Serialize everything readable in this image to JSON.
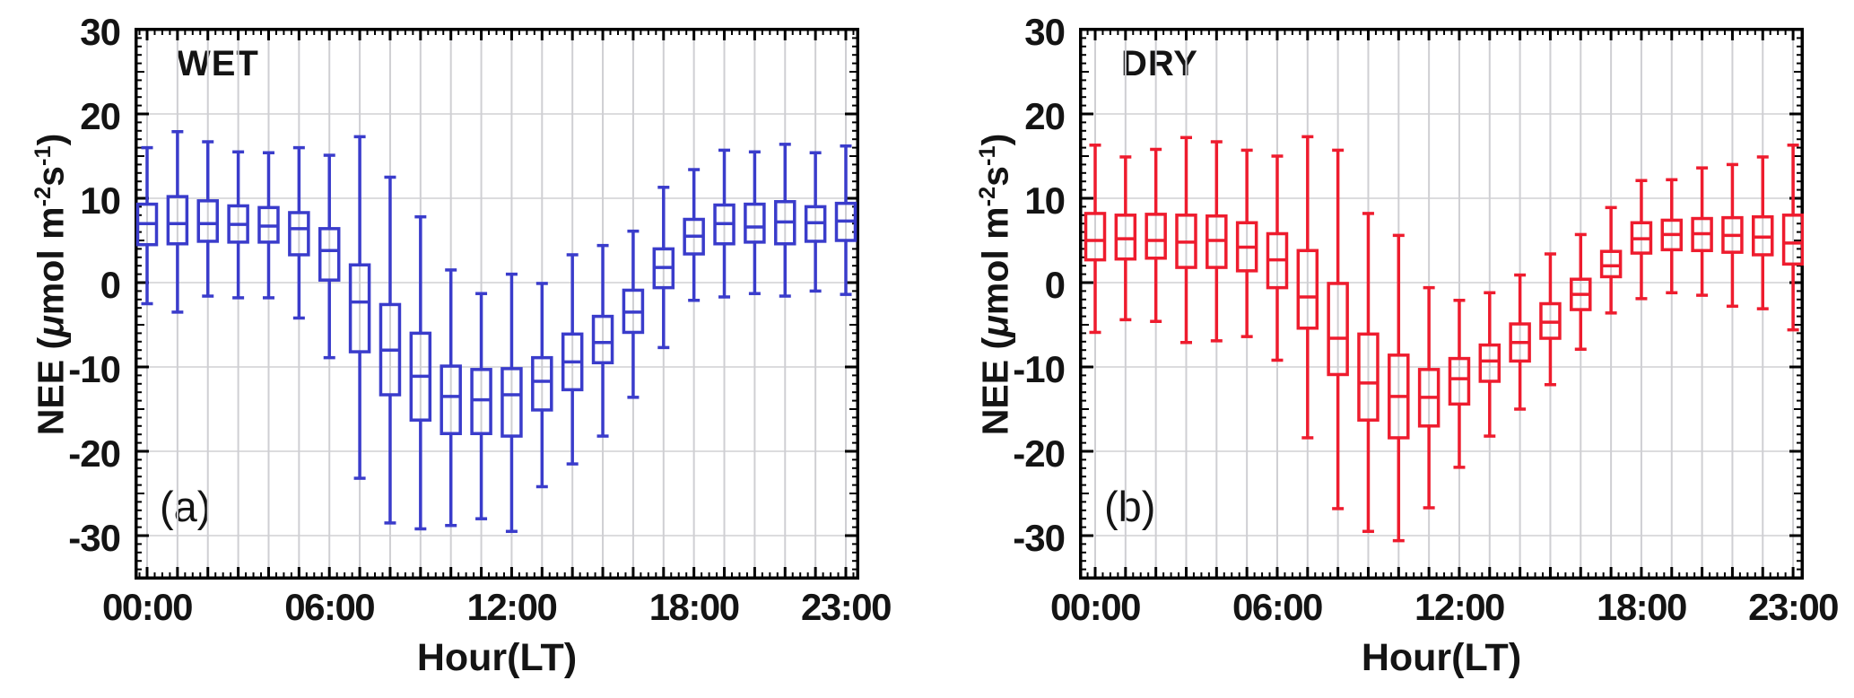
{
  "figure": {
    "background": "#ffffff",
    "ylabel_text": "NEE (μmol m⁻²s⁻¹)"
  },
  "chart_data": [
    {
      "type": "box",
      "panel_label": "(a)",
      "condition_label": "WET",
      "color": "#3a3ccb",
      "xlabel": "Hour(LT)",
      "ylabel_parts": {
        "pre": "NEE (",
        "mu": "μ",
        "mid": "mol m",
        "sup1": "-2",
        "mid2": "s",
        "sup2": "-1",
        "post": ")"
      },
      "x_ticks": [
        {
          "hour": 0,
          "label": "00:00"
        },
        {
          "hour": 6,
          "label": "06:00"
        },
        {
          "hour": 12,
          "label": "12:00"
        },
        {
          "hour": 18,
          "label": "18:00"
        },
        {
          "hour": 23,
          "label": "23:00"
        }
      ],
      "y_ticks": [
        {
          "value": 30,
          "label": "30"
        },
        {
          "value": 20,
          "label": "20"
        },
        {
          "value": 10,
          "label": "10"
        },
        {
          "value": 0,
          "label": "0"
        },
        {
          "value": -10,
          "label": "-10"
        },
        {
          "value": -20,
          "label": "-20"
        },
        {
          "value": -30,
          "label": "-30"
        }
      ],
      "y_gridlines": [
        20,
        10,
        0,
        -10,
        -20,
        -30
      ],
      "ylim": [
        -35,
        30
      ],
      "grid": true,
      "boxes": [
        {
          "hour": 0,
          "lo": -2.5,
          "q1": 4.5,
          "med": 7.0,
          "q3": 9.3,
          "hi": 16.0
        },
        {
          "hour": 1,
          "lo": -3.5,
          "q1": 4.6,
          "med": 7.0,
          "q3": 10.2,
          "hi": 17.9
        },
        {
          "hour": 2,
          "lo": -1.6,
          "q1": 4.9,
          "med": 7.0,
          "q3": 9.7,
          "hi": 16.7
        },
        {
          "hour": 3,
          "lo": -1.8,
          "q1": 4.8,
          "med": 6.9,
          "q3": 9.1,
          "hi": 15.5
        },
        {
          "hour": 4,
          "lo": -1.8,
          "q1": 4.8,
          "med": 6.7,
          "q3": 8.9,
          "hi": 15.4
        },
        {
          "hour": 5,
          "lo": -4.2,
          "q1": 3.3,
          "med": 6.4,
          "q3": 8.3,
          "hi": 16.0
        },
        {
          "hour": 6,
          "lo": -8.9,
          "q1": 0.3,
          "med": 3.8,
          "q3": 6.4,
          "hi": 15.1
        },
        {
          "hour": 7,
          "lo": -23.2,
          "q1": -8.2,
          "med": -2.3,
          "q3": 2.1,
          "hi": 17.3
        },
        {
          "hour": 8,
          "lo": -28.5,
          "q1": -13.3,
          "med": -8.0,
          "q3": -2.6,
          "hi": 12.5
        },
        {
          "hour": 9,
          "lo": -29.2,
          "q1": -16.3,
          "med": -11.1,
          "q3": -6.0,
          "hi": 7.8
        },
        {
          "hour": 10,
          "lo": -28.8,
          "q1": -17.9,
          "med": -13.5,
          "q3": -9.9,
          "hi": 1.5
        },
        {
          "hour": 11,
          "lo": -28.0,
          "q1": -17.9,
          "med": -13.9,
          "q3": -10.3,
          "hi": -1.3
        },
        {
          "hour": 12,
          "lo": -29.5,
          "q1": -18.2,
          "med": -13.3,
          "q3": -10.2,
          "hi": 1.0
        },
        {
          "hour": 13,
          "lo": -24.2,
          "q1": -15.1,
          "med": -11.7,
          "q3": -8.9,
          "hi": -0.1
        },
        {
          "hour": 14,
          "lo": -21.5,
          "q1": -12.7,
          "med": -9.4,
          "q3": -6.1,
          "hi": 3.3
        },
        {
          "hour": 15,
          "lo": -18.2,
          "q1": -9.5,
          "med": -7.1,
          "q3": -4.0,
          "hi": 4.4
        },
        {
          "hour": 16,
          "lo": -13.6,
          "q1": -5.9,
          "med": -3.5,
          "q3": -0.9,
          "hi": 6.1
        },
        {
          "hour": 17,
          "lo": -7.7,
          "q1": -0.6,
          "med": 1.8,
          "q3": 4.0,
          "hi": 11.3
        },
        {
          "hour": 18,
          "lo": -2.1,
          "q1": 3.4,
          "med": 5.5,
          "q3": 7.5,
          "hi": 13.4
        },
        {
          "hour": 19,
          "lo": -1.7,
          "q1": 4.6,
          "med": 7.0,
          "q3": 9.2,
          "hi": 15.7
        },
        {
          "hour": 20,
          "lo": -1.3,
          "q1": 4.8,
          "med": 6.6,
          "q3": 9.3,
          "hi": 15.5
        },
        {
          "hour": 21,
          "lo": -1.6,
          "q1": 4.6,
          "med": 7.2,
          "q3": 9.6,
          "hi": 16.4
        },
        {
          "hour": 22,
          "lo": -1.0,
          "q1": 4.9,
          "med": 7.1,
          "q3": 9.0,
          "hi": 15.4
        },
        {
          "hour": 23,
          "lo": -1.4,
          "q1": 5.0,
          "med": 7.3,
          "q3": 9.4,
          "hi": 16.2
        }
      ]
    },
    {
      "type": "box",
      "panel_label": "(b)",
      "condition_label": "DRY",
      "color": "#ee1c2e",
      "xlabel": "Hour(LT)",
      "ylabel_parts": {
        "pre": "NEE (",
        "mu": "μ",
        "mid": "mol m",
        "sup1": "-2",
        "mid2": "s",
        "sup2": "-1",
        "post": ")"
      },
      "x_ticks": [
        {
          "hour": 0,
          "label": "00:00"
        },
        {
          "hour": 6,
          "label": "06:00"
        },
        {
          "hour": 12,
          "label": "12:00"
        },
        {
          "hour": 18,
          "label": "18:00"
        },
        {
          "hour": 23,
          "label": "23:00"
        }
      ],
      "y_ticks": [
        {
          "value": 30,
          "label": "30"
        },
        {
          "value": 20,
          "label": "20"
        },
        {
          "value": 10,
          "label": "10"
        },
        {
          "value": 0,
          "label": "0"
        },
        {
          "value": -10,
          "label": "-10"
        },
        {
          "value": -20,
          "label": "-20"
        },
        {
          "value": -30,
          "label": "-30"
        }
      ],
      "y_gridlines": [
        20,
        10,
        0,
        -10,
        -20,
        -30
      ],
      "ylim": [
        -35,
        30
      ],
      "grid": true,
      "boxes": [
        {
          "hour": 0,
          "lo": -5.9,
          "q1": 2.7,
          "med": 5.0,
          "q3": 8.2,
          "hi": 16.3
        },
        {
          "hour": 1,
          "lo": -4.4,
          "q1": 2.8,
          "med": 5.2,
          "q3": 8.0,
          "hi": 14.9
        },
        {
          "hour": 2,
          "lo": -4.6,
          "q1": 2.9,
          "med": 5.0,
          "q3": 8.1,
          "hi": 15.8
        },
        {
          "hour": 3,
          "lo": -7.1,
          "q1": 1.8,
          "med": 4.8,
          "q3": 8.0,
          "hi": 17.2
        },
        {
          "hour": 4,
          "lo": -6.9,
          "q1": 1.8,
          "med": 5.0,
          "q3": 7.9,
          "hi": 16.7
        },
        {
          "hour": 5,
          "lo": -6.4,
          "q1": 1.4,
          "med": 4.2,
          "q3": 7.1,
          "hi": 15.7
        },
        {
          "hour": 6,
          "lo": -9.2,
          "q1": -0.6,
          "med": 2.7,
          "q3": 5.8,
          "hi": 15.0
        },
        {
          "hour": 7,
          "lo": -18.4,
          "q1": -5.4,
          "med": -1.7,
          "q3": 3.8,
          "hi": 17.3
        },
        {
          "hour": 8,
          "lo": -26.8,
          "q1": -10.9,
          "med": -6.6,
          "q3": -0.1,
          "hi": 15.7
        },
        {
          "hour": 9,
          "lo": -29.5,
          "q1": -16.3,
          "med": -11.9,
          "q3": -6.1,
          "hi": 8.2
        },
        {
          "hour": 10,
          "lo": -30.6,
          "q1": -18.4,
          "med": -13.5,
          "q3": -8.6,
          "hi": 5.6
        },
        {
          "hour": 11,
          "lo": -26.7,
          "q1": -17.0,
          "med": -13.6,
          "q3": -10.3,
          "hi": -0.6
        },
        {
          "hour": 12,
          "lo": -21.9,
          "q1": -14.4,
          "med": -11.4,
          "q3": -9.0,
          "hi": -2.1
        },
        {
          "hour": 13,
          "lo": -18.2,
          "q1": -11.7,
          "med": -9.3,
          "q3": -7.4,
          "hi": -1.2
        },
        {
          "hour": 14,
          "lo": -15.0,
          "q1": -9.3,
          "med": -7.1,
          "q3": -4.9,
          "hi": 0.9
        },
        {
          "hour": 15,
          "lo": -12.1,
          "q1": -6.6,
          "med": -4.7,
          "q3": -2.5,
          "hi": 3.4
        },
        {
          "hour": 16,
          "lo": -7.9,
          "q1": -3.2,
          "med": -1.4,
          "q3": 0.4,
          "hi": 5.7
        },
        {
          "hour": 17,
          "lo": -3.6,
          "q1": 0.7,
          "med": 2.0,
          "q3": 3.7,
          "hi": 8.9
        },
        {
          "hour": 18,
          "lo": -1.9,
          "q1": 3.5,
          "med": 5.2,
          "q3": 7.1,
          "hi": 12.1
        },
        {
          "hour": 19,
          "lo": -1.2,
          "q1": 3.9,
          "med": 5.7,
          "q3": 7.4,
          "hi": 12.2
        },
        {
          "hour": 20,
          "lo": -1.5,
          "q1": 3.8,
          "med": 5.8,
          "q3": 7.6,
          "hi": 13.6
        },
        {
          "hour": 21,
          "lo": -2.8,
          "q1": 3.6,
          "med": 5.6,
          "q3": 7.7,
          "hi": 14.0
        },
        {
          "hour": 22,
          "lo": -3.1,
          "q1": 3.3,
          "med": 5.4,
          "q3": 7.8,
          "hi": 14.9
        },
        {
          "hour": 23,
          "lo": -5.6,
          "q1": 2.2,
          "med": 4.7,
          "q3": 8.0,
          "hi": 16.3
        }
      ]
    }
  ]
}
